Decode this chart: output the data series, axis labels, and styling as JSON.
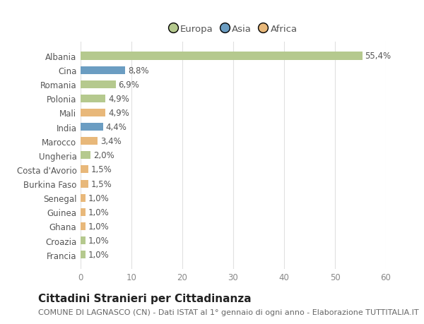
{
  "categories": [
    "Albania",
    "Cina",
    "Romania",
    "Polonia",
    "Mali",
    "India",
    "Marocco",
    "Ungheria",
    "Costa d'Avorio",
    "Burkina Faso",
    "Senegal",
    "Guinea",
    "Ghana",
    "Croazia",
    "Francia"
  ],
  "values": [
    55.4,
    8.8,
    6.9,
    4.9,
    4.9,
    4.4,
    3.4,
    2.0,
    1.5,
    1.5,
    1.0,
    1.0,
    1.0,
    1.0,
    1.0
  ],
  "labels": [
    "55,4%",
    "8,8%",
    "6,9%",
    "4,9%",
    "4,9%",
    "4,4%",
    "3,4%",
    "2,0%",
    "1,5%",
    "1,5%",
    "1,0%",
    "1,0%",
    "1,0%",
    "1,0%",
    "1,0%"
  ],
  "continents": [
    "Europa",
    "Asia",
    "Europa",
    "Europa",
    "Africa",
    "Asia",
    "Africa",
    "Europa",
    "Africa",
    "Africa",
    "Africa",
    "Africa",
    "Africa",
    "Europa",
    "Europa"
  ],
  "colors": {
    "Europa": "#b5c98e",
    "Asia": "#6b9dc2",
    "Africa": "#e8b87a"
  },
  "legend_order": [
    "Europa",
    "Asia",
    "Africa"
  ],
  "title": "Cittadini Stranieri per Cittadinanza",
  "subtitle": "COMUNE DI LAGNASCO (CN) - Dati ISTAT al 1° gennaio di ogni anno - Elaborazione TUTTITALIA.IT",
  "xlim": [
    0,
    60
  ],
  "xticks": [
    0,
    10,
    20,
    30,
    40,
    50,
    60
  ],
  "background_color": "#ffffff",
  "grid_color": "#e0e0e0",
  "bar_height": 0.55,
  "title_fontsize": 11,
  "subtitle_fontsize": 8,
  "label_fontsize": 8.5,
  "tick_fontsize": 8.5,
  "legend_fontsize": 9.5
}
